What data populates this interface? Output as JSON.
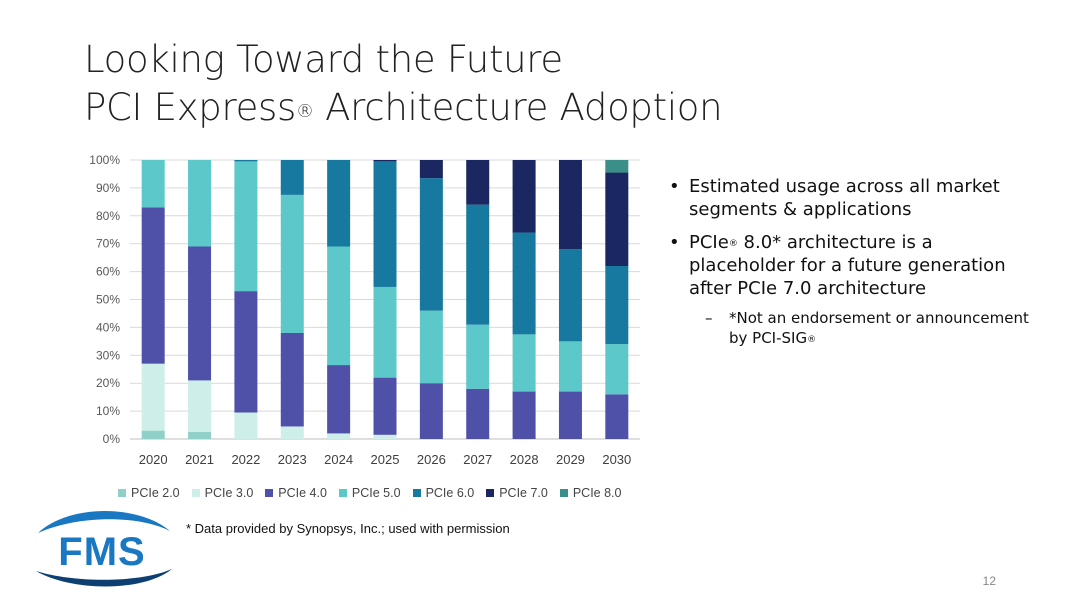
{
  "slide": {
    "title_line1": "Looking Toward the Future",
    "title_line2_a": "PCI Express",
    "title_reg": "®",
    "title_line2_b": " Architecture Adoption",
    "bullets": [
      {
        "pre": "Estimated usage across all market segments & applications"
      },
      {
        "pre": "PCIe",
        "sup": "®",
        "post": " 8.0* architecture is a placeholder for a future generation after PCIe 7.0 architecture"
      }
    ],
    "sub_bullet": {
      "pre": "*Not an endorsement or announcement by PCI-SIG",
      "sup": "®"
    },
    "footnote": "* Data provided by Synopsys, Inc.; used with permission",
    "page_number": "12",
    "logo_text": "FMS",
    "colors": {
      "logo_blue": "#1a78c2",
      "logo_dark": "#0d3f73"
    }
  },
  "chart_data": {
    "type": "bar",
    "stacked": true,
    "percent": true,
    "categories": [
      "2020",
      "2021",
      "2022",
      "2023",
      "2024",
      "2025",
      "2026",
      "2027",
      "2028",
      "2029",
      "2030"
    ],
    "ylim": [
      0,
      100
    ],
    "yticks": [
      "0%",
      "10%",
      "20%",
      "30%",
      "40%",
      "50%",
      "60%",
      "70%",
      "80%",
      "90%",
      "100%"
    ],
    "grid": true,
    "legend_position": "bottom",
    "series": [
      {
        "name": "PCIe 2.0",
        "color": "#8fd0c8",
        "values": [
          3,
          2.5,
          0,
          0,
          0,
          0,
          0,
          0,
          0,
          0,
          0
        ]
      },
      {
        "name": "PCIe 3.0",
        "color": "#cdeee9",
        "values": [
          24,
          18.5,
          9.5,
          4.5,
          2,
          1.5,
          0,
          0,
          0,
          0,
          0
        ]
      },
      {
        "name": "PCIe 4.0",
        "color": "#4f51a8",
        "values": [
          56,
          48,
          43.5,
          33.5,
          24.5,
          20.5,
          20,
          18,
          17,
          17,
          16
        ]
      },
      {
        "name": "PCIe 5.0",
        "color": "#5cc8c9",
        "values": [
          17,
          31,
          46.5,
          49.5,
          42.5,
          32.5,
          26,
          23,
          20.5,
          18,
          18
        ]
      },
      {
        "name": "PCIe 6.0",
        "color": "#17799f",
        "values": [
          0,
          0,
          0.5,
          12.5,
          31,
          45,
          47.5,
          43,
          36.5,
          33,
          28
        ]
      },
      {
        "name": "PCIe 7.0",
        "color": "#1a2760",
        "values": [
          0,
          0,
          0,
          0,
          0,
          0.5,
          6.5,
          16,
          26,
          32,
          33.5
        ]
      },
      {
        "name": "PCIe 8.0",
        "color": "#3a8f88",
        "values": [
          0,
          0,
          0,
          0,
          0,
          0,
          0,
          0,
          0,
          0,
          4.5
        ]
      }
    ]
  }
}
